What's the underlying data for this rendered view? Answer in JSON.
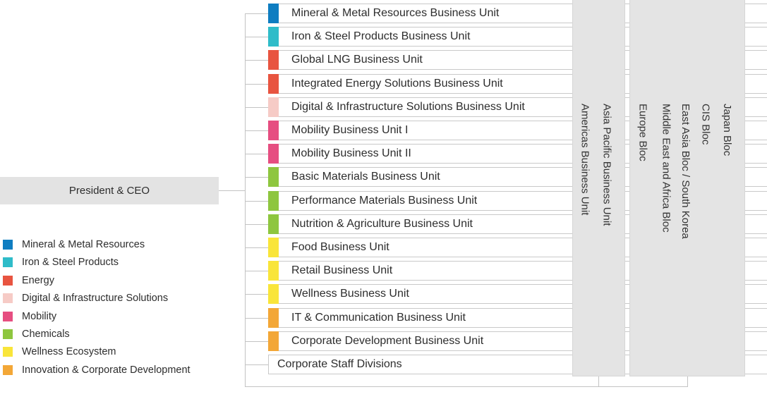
{
  "org_chart": {
    "root": {
      "label": "President & CEO"
    },
    "business_units": [
      {
        "label": "Mineral & Metal Resources Business Unit",
        "category": "mineral_metal"
      },
      {
        "label": "Iron & Steel Products Business Unit",
        "category": "iron_steel"
      },
      {
        "label": "Global LNG Business Unit",
        "category": "energy"
      },
      {
        "label": "Integrated Energy Solutions Business Unit",
        "category": "energy"
      },
      {
        "label": "Digital & Infrastructure Solutions Business Unit",
        "category": "digital_infrastructure"
      },
      {
        "label": "Mobility Business Unit I",
        "category": "mobility"
      },
      {
        "label": "Mobility Business Unit II",
        "category": "mobility"
      },
      {
        "label": "Basic Materials Business Unit",
        "category": "chemicals"
      },
      {
        "label": "Performance Materials Business Unit",
        "category": "chemicals"
      },
      {
        "label": "Nutrition & Agriculture Business Unit",
        "category": "chemicals"
      },
      {
        "label": "Food Business Unit",
        "category": "wellness"
      },
      {
        "label": "Retail Business Unit",
        "category": "wellness"
      },
      {
        "label": "Wellness Business Unit",
        "category": "wellness"
      },
      {
        "label": "IT & Communication Business Unit",
        "category": "innovation"
      },
      {
        "label": "Corporate Development Business Unit",
        "category": "innovation"
      },
      {
        "label": "Corporate Staff Divisions",
        "category": null
      }
    ],
    "regional_panels": [
      {
        "columns": [
          "Americas Business Unit",
          "Asia Pacific Business Unit"
        ]
      },
      {
        "columns": [
          "Europe Bloc",
          "Middle East and Africa Bloc",
          "East Asia Bloc / South Korea",
          "CIS Bloc",
          "Japan Bloc"
        ]
      }
    ],
    "legend": [
      {
        "label": "Mineral & Metal Resources",
        "category": "mineral_metal"
      },
      {
        "label": "Iron & Steel Products",
        "category": "iron_steel"
      },
      {
        "label": "Energy",
        "category": "energy"
      },
      {
        "label": "Digital & Infrastructure Solutions",
        "category": "digital_infrastructure"
      },
      {
        "label": "Mobility",
        "category": "mobility"
      },
      {
        "label": "Chemicals",
        "category": "chemicals"
      },
      {
        "label": "Wellness Ecosystem",
        "category": "wellness"
      },
      {
        "label": "Innovation & Corporate Development",
        "category": "innovation"
      }
    ],
    "palette": {
      "mineral_metal": "#0e7dc1",
      "iron_steel": "#2fbcc9",
      "energy": "#e85440",
      "digital_infrastructure": "#f6cbc6",
      "mobility": "#e64e81",
      "chemicals": "#8ec63f",
      "wellness": "#f9e53a",
      "innovation": "#f3a737"
    },
    "ui_colors": {
      "panel_fill": "#e4e4e4",
      "president_box_fill": "#e3e3e3",
      "connector_line": "#c3c3c3",
      "box_border": "#c9c9c9",
      "text": "#2d2d2d"
    }
  }
}
